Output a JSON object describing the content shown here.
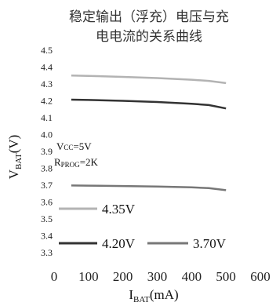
{
  "chart_data": {
    "type": "line",
    "title_lines": [
      "稳定输出（浮充）电压与充",
      "电电流的关系曲线"
    ],
    "xlabel": {
      "main": "I",
      "sub": "BAT",
      "unit": "(mA)"
    },
    "ylabel": {
      "main": "V",
      "sub": "BAT",
      "unit": "(V)"
    },
    "xlim": [
      0,
      600
    ],
    "ylim": [
      3.3,
      4.5
    ],
    "x_ticks": [
      0,
      100,
      200,
      300,
      400,
      500,
      600
    ],
    "y_ticks": [
      "4.5",
      "4.4",
      "4.3",
      "4.2",
      "4.1",
      "4.0",
      "3.9",
      "3.8",
      "3.7",
      "3.6",
      "3.5",
      "3.4",
      "3.3"
    ],
    "y_tick_values": [
      4.5,
      4.4,
      4.3,
      4.2,
      4.1,
      4.0,
      3.9,
      3.8,
      3.7,
      3.6,
      3.5,
      3.4,
      3.3
    ],
    "annotation_vcc": {
      "main": "V",
      "sub": "CC",
      "rest": "=5V"
    },
    "annotation_rprog": {
      "main": "R",
      "sub": "PROG",
      "rest": "=2K"
    },
    "series": [
      {
        "name": "4.35V",
        "color": "#b3b3b3",
        "x": [
          50,
          100,
          200,
          300,
          400,
          450,
          500
        ],
        "y": [
          4.35,
          4.348,
          4.342,
          4.335,
          4.325,
          4.318,
          4.305
        ]
      },
      {
        "name": "4.20V",
        "color": "#333333",
        "x": [
          50,
          100,
          200,
          300,
          400,
          450,
          500
        ],
        "y": [
          4.207,
          4.205,
          4.2,
          4.193,
          4.183,
          4.175,
          4.155
        ]
      },
      {
        "name": "3.70V",
        "color": "#777777",
        "x": [
          50,
          100,
          200,
          300,
          400,
          450,
          500
        ],
        "y": [
          3.698,
          3.697,
          3.695,
          3.692,
          3.687,
          3.683,
          3.67
        ]
      }
    ]
  }
}
